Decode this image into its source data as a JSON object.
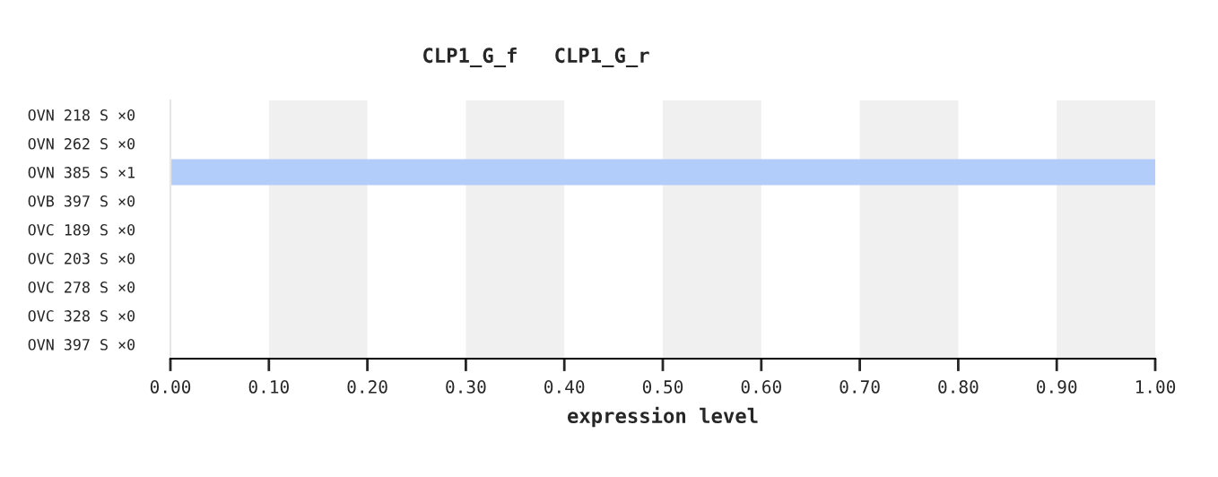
{
  "chart_data": {
    "type": "bar",
    "orientation": "horizontal",
    "title": "CLP1_G_f   CLP1_G_r",
    "xlabel": "expression level",
    "categories": [
      "OVN 218 S ×0",
      "OVN 262 S ×0",
      "OVN 385 S ×1",
      "OVB 397 S ×0",
      "OVC 189 S ×0",
      "OVC 203 S ×0",
      "OVC 278 S ×0",
      "OVC 328 S ×0",
      "OVN 397 S ×0"
    ],
    "values": [
      0,
      0,
      1.0,
      0,
      0,
      0,
      0,
      0,
      0
    ],
    "color": "#b3cdfb",
    "xlim": [
      0,
      1
    ],
    "xticks": [
      {
        "value": 0,
        "label": "0.00"
      },
      {
        "value": 0.1,
        "label": "0.10"
      },
      {
        "value": 0.2,
        "label": "0.20"
      },
      {
        "value": 0.3,
        "label": "0.30"
      },
      {
        "value": 0.4,
        "label": "0.40"
      },
      {
        "value": 0.5,
        "label": "0.50"
      },
      {
        "value": 0.6,
        "label": "0.60"
      },
      {
        "value": 0.7,
        "label": "0.70"
      },
      {
        "value": 0.8,
        "label": "0.80"
      },
      {
        "value": 0.9,
        "label": "0.90"
      },
      {
        "value": 1.0,
        "label": "1.00"
      }
    ],
    "bands": [
      {
        "axis": "x",
        "from": 0.1,
        "to": 0.2,
        "color": "#f0f0f0"
      },
      {
        "axis": "x",
        "from": 0.3,
        "to": 0.4,
        "color": "#f0f0f0"
      },
      {
        "axis": "x",
        "from": 0.5,
        "to": 0.6,
        "color": "#f0f0f0"
      },
      {
        "axis": "x",
        "from": 0.7,
        "to": 0.8,
        "color": "#f0f0f0"
      },
      {
        "axis": "x",
        "from": 0.9,
        "to": 1.0,
        "color": "#f0f0f0"
      }
    ],
    "grid": false,
    "legend": false
  }
}
